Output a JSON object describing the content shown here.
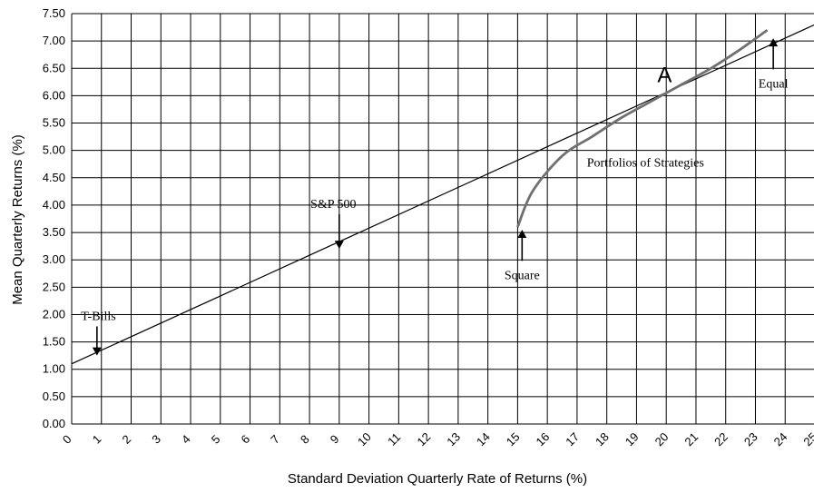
{
  "chart_data": {
    "type": "line",
    "xlabel": "Standard Deviation Quarterly Rate of Returns (%)",
    "ylabel": "Mean Quarterly Returns (%)",
    "xlim": [
      0,
      25
    ],
    "ylim": [
      0,
      7.5
    ],
    "x_ticks": [
      "0",
      "1",
      "2",
      "3",
      "4",
      "5",
      "6",
      "7",
      "8",
      "9",
      "10",
      "11",
      "12",
      "13",
      "14",
      "15",
      "16",
      "17",
      "18",
      "19",
      "20",
      "21",
      "22",
      "23",
      "24",
      "25"
    ],
    "y_ticks": [
      "0.00",
      "0.50",
      "1.00",
      "1.50",
      "2.00",
      "2.50",
      "3.00",
      "3.50",
      "4.00",
      "4.50",
      "5.00",
      "5.50",
      "6.00",
      "6.50",
      "7.00",
      "7.50"
    ],
    "grid": true,
    "series": [
      {
        "color": "#000000",
        "points": [
          [
            0,
            1.1
          ],
          [
            25,
            7.3
          ]
        ]
      },
      {
        "color": "#707070",
        "points": [
          [
            15.0,
            3.6
          ],
          [
            15.5,
            4.25
          ],
          [
            16.5,
            4.9
          ],
          [
            17.5,
            5.25
          ],
          [
            18.5,
            5.6
          ],
          [
            19.5,
            5.9
          ],
          [
            20.5,
            6.2
          ],
          [
            21.5,
            6.5
          ],
          [
            22.5,
            6.85
          ],
          [
            23.4,
            7.2
          ]
        ]
      }
    ],
    "annotations": [
      {
        "text": "T-Bills",
        "x": 0.9,
        "y": 1.9,
        "arrow_to": [
          0.85,
          1.25
        ]
      },
      {
        "text": "S&P 500",
        "x": 8.8,
        "y": 3.95,
        "arrow_to": [
          9.0,
          3.2
        ]
      },
      {
        "text": "Square",
        "x": 15.15,
        "y": 2.65,
        "arrow_to": [
          15.15,
          3.55
        ]
      },
      {
        "text": "Equal",
        "x": 23.6,
        "y": 6.15,
        "arrow_to": [
          23.6,
          7.05
        ]
      },
      {
        "text": "Portfolios of Strategies",
        "x": 19.3,
        "y": 4.7,
        "arrow_to": null
      },
      {
        "text": "A",
        "x": 19.7,
        "y": 6.25,
        "arrow_to": null,
        "large": true
      }
    ]
  }
}
